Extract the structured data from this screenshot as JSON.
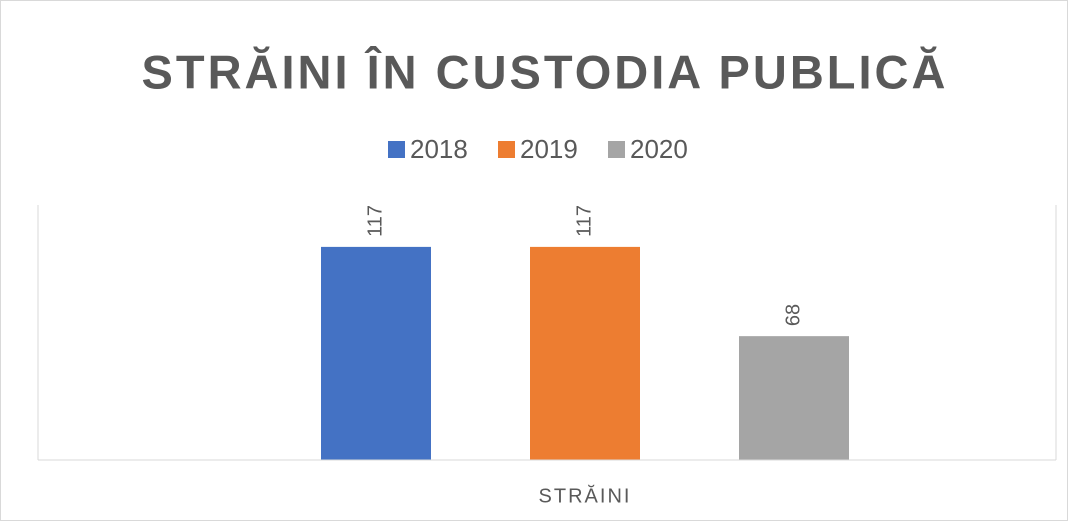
{
  "chart_data": {
    "type": "bar",
    "title": "STRĂINI ÎN CUSTODIA PUBLICĂ",
    "categories": [
      "STRĂINI"
    ],
    "series": [
      {
        "name": "2018",
        "color": "#4472c4",
        "values": [
          117
        ]
      },
      {
        "name": "2019",
        "color": "#ed7d31",
        "values": [
          117
        ]
      },
      {
        "name": "2020",
        "color": "#a5a5a5",
        "values": [
          68
        ]
      }
    ],
    "ylim": [
      0,
      140
    ],
    "legend": "top"
  }
}
